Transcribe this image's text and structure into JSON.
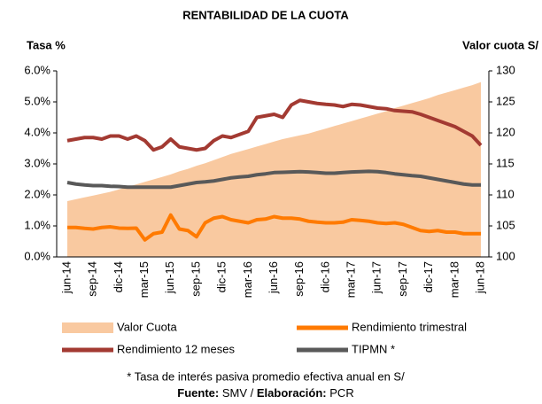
{
  "chart_data": {
    "type": "combo",
    "title": "RENTABILIDAD DE LA CUOTA",
    "ylabel": "Tasa %",
    "y2label": "Valor cuota S/",
    "categories": [
      "jun-14",
      null,
      null,
      "sep-14",
      null,
      null,
      "dic-14",
      null,
      null,
      "mar-15",
      null,
      null,
      "jun-15",
      null,
      null,
      "sep-15",
      null,
      null,
      "dic-15",
      null,
      null,
      "mar-16",
      null,
      null,
      "jun-16",
      null,
      null,
      "sep-16",
      null,
      null,
      "dic-16",
      null,
      null,
      "mar-17",
      null,
      null,
      "jun-17",
      null,
      null,
      "sep-17",
      null,
      null,
      "dic-17",
      null,
      null,
      "mar-18",
      null,
      null,
      "jun-18"
    ],
    "ylim": [
      0,
      6
    ],
    "yticks": [
      {
        "value": 0,
        "label": "0.0%"
      },
      {
        "value": 1,
        "label": "1.0%"
      },
      {
        "value": 2,
        "label": "2.0%"
      },
      {
        "value": 3,
        "label": "3.0%"
      },
      {
        "value": 4,
        "label": "4.0%"
      },
      {
        "value": 5,
        "label": "5.0%"
      },
      {
        "value": 6,
        "label": "6.0%"
      }
    ],
    "y2lim": [
      100,
      130
    ],
    "y2ticks": [
      100,
      105,
      110,
      115,
      120,
      125,
      130
    ],
    "series": [
      {
        "name": "Valor Cuota",
        "type": "area",
        "axis": "y2",
        "color": "#f9c9a0",
        "values": [
          109.0,
          109.3,
          109.6,
          109.9,
          110.2,
          110.5,
          110.9,
          111.3,
          111.7,
          112.1,
          112.5,
          112.9,
          113.3,
          113.8,
          114.2,
          114.7,
          115.1,
          115.6,
          116.1,
          116.6,
          117.0,
          117.4,
          117.8,
          118.2,
          118.6,
          119.0,
          119.3,
          119.6,
          119.9,
          120.3,
          120.7,
          121.1,
          121.5,
          121.9,
          122.3,
          122.7,
          123.1,
          123.5,
          124.0,
          124.4,
          124.8,
          125.2,
          125.6,
          126.1,
          126.5,
          126.9,
          127.3,
          127.7,
          128.2
        ]
      },
      {
        "name": "Rendimiento trimestral",
        "type": "line",
        "color": "#ff7a00",
        "values": [
          0.95,
          0.95,
          0.92,
          0.9,
          0.95,
          0.97,
          0.93,
          0.92,
          0.93,
          0.55,
          0.75,
          0.8,
          1.35,
          0.9,
          0.85,
          0.65,
          1.1,
          1.25,
          1.3,
          1.2,
          1.15,
          1.1,
          1.2,
          1.22,
          1.3,
          1.25,
          1.25,
          1.22,
          1.15,
          1.12,
          1.1,
          1.1,
          1.12,
          1.2,
          1.18,
          1.15,
          1.1,
          1.08,
          1.1,
          1.05,
          0.95,
          0.85,
          0.82,
          0.85,
          0.8,
          0.8,
          0.75,
          0.75,
          0.75
        ]
      },
      {
        "name": "Rendimiento 12 meses",
        "type": "line",
        "color": "#a33a32",
        "values": [
          3.75,
          3.8,
          3.85,
          3.85,
          3.8,
          3.9,
          3.9,
          3.8,
          3.9,
          3.75,
          3.45,
          3.55,
          3.8,
          3.55,
          3.5,
          3.45,
          3.5,
          3.75,
          3.9,
          3.85,
          3.95,
          4.05,
          4.5,
          4.55,
          4.6,
          4.5,
          4.9,
          5.05,
          5.0,
          4.95,
          4.92,
          4.9,
          4.85,
          4.92,
          4.9,
          4.85,
          4.8,
          4.78,
          4.72,
          4.7,
          4.68,
          4.6,
          4.5,
          4.4,
          4.3,
          4.2,
          4.05,
          3.9,
          3.6
        ]
      },
      {
        "name": "TIPMN *",
        "type": "line",
        "color": "#595959",
        "values": [
          2.4,
          2.35,
          2.32,
          2.3,
          2.3,
          2.28,
          2.27,
          2.25,
          2.25,
          2.25,
          2.25,
          2.25,
          2.25,
          2.3,
          2.35,
          2.4,
          2.42,
          2.45,
          2.5,
          2.55,
          2.58,
          2.6,
          2.65,
          2.68,
          2.72,
          2.73,
          2.74,
          2.75,
          2.74,
          2.72,
          2.7,
          2.7,
          2.72,
          2.74,
          2.75,
          2.76,
          2.75,
          2.72,
          2.68,
          2.65,
          2.62,
          2.6,
          2.55,
          2.5,
          2.45,
          2.4,
          2.35,
          2.32,
          2.32
        ]
      }
    ],
    "footnote": "* Tasa de interés pasiva promedio efectiva anual en S/",
    "source": [
      "Fuente:",
      "SMV /",
      "Elaboración:",
      "PCR"
    ]
  }
}
